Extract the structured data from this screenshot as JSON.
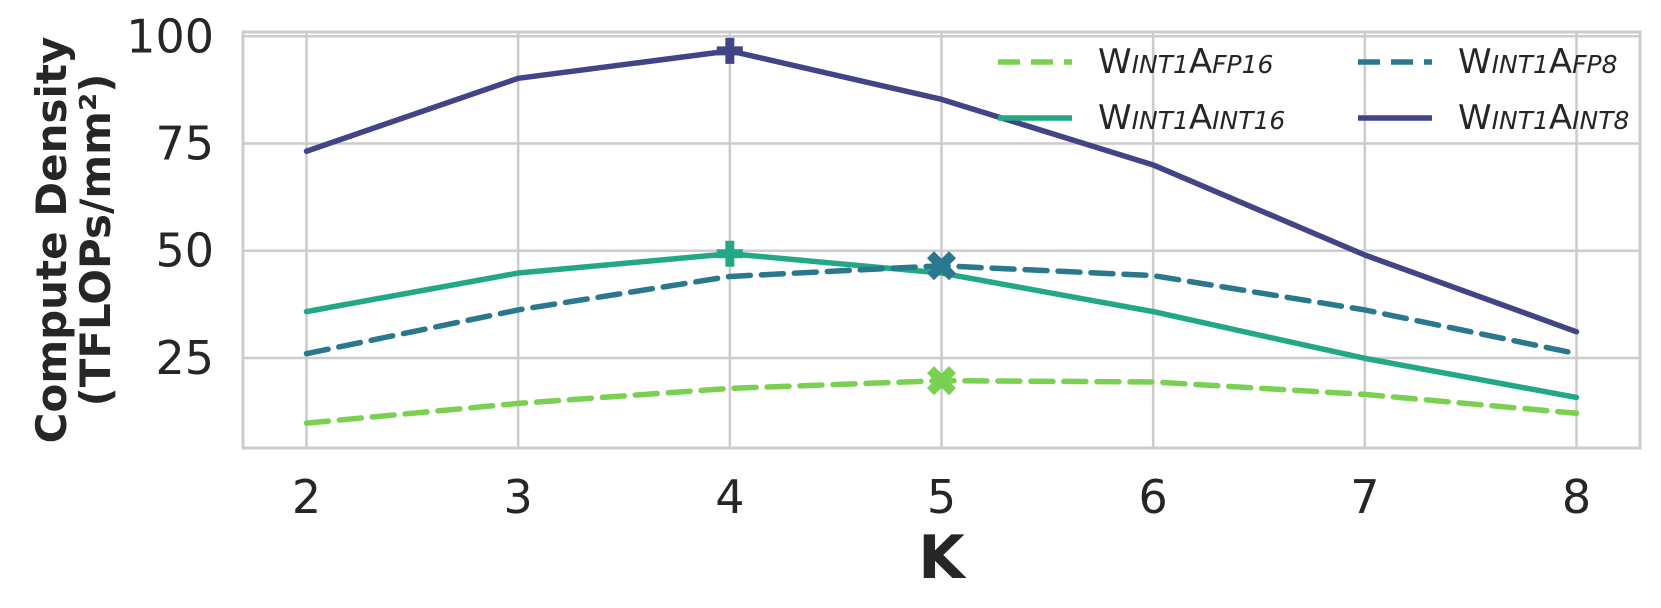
{
  "chart_data": {
    "type": "line",
    "xlabel": "K",
    "ylabel_line1": "Compute Density",
    "ylabel_line2": "(TFLOPs/mm²)",
    "x": [
      2,
      3,
      4,
      5,
      6,
      7,
      8
    ],
    "xlim": [
      1.7,
      8.3
    ],
    "ylim": [
      4,
      101
    ],
    "yticks": [
      25,
      50,
      75,
      100
    ],
    "grid": true,
    "legend_position": "top-right",
    "series": [
      {
        "name": "WINT1AFP16",
        "label_base1": "W",
        "label_sub1": "INT1",
        "label_base2": "A",
        "label_sub2": "FP16",
        "values": [
          9.8,
          14.4,
          17.9,
          19.7,
          19.4,
          16.5,
          12.1
        ],
        "color": "#7ad151",
        "dashed": true,
        "peak_index": 3,
        "peak_marker": "x"
      },
      {
        "name": "WINT1AINT16",
        "label_base1": "W",
        "label_sub1": "INT1",
        "label_base2": "A",
        "label_sub2": "INT16",
        "values": [
          35.8,
          44.8,
          49.3,
          44.8,
          35.8,
          24.9,
          15.8
        ],
        "color": "#22a884",
        "dashed": false,
        "peak_index": 2,
        "peak_marker": "plus"
      },
      {
        "name": "WINT1AFP8",
        "label_base1": "W",
        "label_sub1": "INT1",
        "label_base2": "A",
        "label_sub2": "FP8",
        "values": [
          26.0,
          36.2,
          44.0,
          46.5,
          44.2,
          36.2,
          26.0
        ],
        "color": "#2a788e",
        "dashed": true,
        "peak_index": 3,
        "peak_marker": "x"
      },
      {
        "name": "WINT1AINT8",
        "label_base1": "W",
        "label_sub1": "INT1",
        "label_base2": "A",
        "label_sub2": "INT8",
        "values": [
          73.2,
          90.2,
          96.6,
          85.3,
          70.0,
          49.0,
          31.1
        ],
        "color": "#414487",
        "dashed": false,
        "peak_index": 2,
        "peak_marker": "plus"
      }
    ]
  }
}
